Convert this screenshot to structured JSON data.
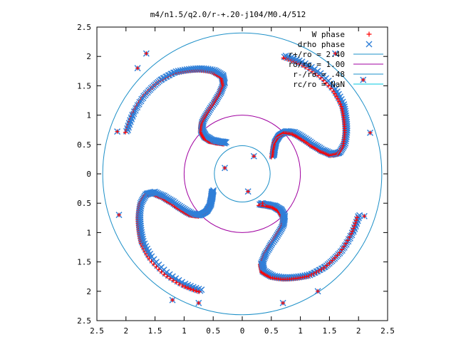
{
  "chart_data": {
    "type": "scatter",
    "title": "m4/n1.5/q2.0/r-+.20-j104/M0.4/512",
    "xlabel": "",
    "ylabel": "",
    "xlim": [
      -2.5,
      2.5
    ],
    "ylim": [
      -2.5,
      2.5
    ],
    "x_ticks": [
      -2.5,
      -2,
      -1.5,
      -1,
      -0.5,
      0,
      0.5,
      1,
      1.5,
      2,
      2.5
    ],
    "y_ticks": [
      -2.5,
      -2,
      -1.5,
      -1,
      -0.5,
      0,
      0.5,
      1,
      1.5,
      2,
      2.5
    ],
    "x_tick_labels": [
      "2.5",
      "2",
      "1.5",
      "1",
      "0.5",
      "0",
      "0.5",
      "1",
      "1.5",
      "2",
      "2.5"
    ],
    "y_tick_labels": [
      "2.5",
      "2",
      "1.5",
      "1",
      "0.5",
      "0",
      "0.5",
      "1",
      "1.5",
      "2",
      "2.5"
    ],
    "grid": false,
    "legend_position": "top-right",
    "legend": [
      {
        "label": "W phase",
        "kind": "point-plus",
        "color": "#ff0000"
      },
      {
        "label": "drho phase",
        "kind": "point-cross",
        "color": "#2f7fd8"
      },
      {
        "label": "r+/ro = 2.40",
        "kind": "line",
        "color": "#1e90c8"
      },
      {
        "label": "ro/ro = 1.00",
        "kind": "line",
        "color": "#a000a0"
      },
      {
        "label": "r-/ro = .48",
        "kind": "line",
        "color": "#1e90c8"
      },
      {
        "label": "rc/ro = NaN",
        "kind": "line",
        "color": "#00c8e0"
      }
    ],
    "circles": [
      {
        "name": "r+/ro = 2.40",
        "radius": 2.4,
        "color": "#1e90c8"
      },
      {
        "name": "ro/ro = 1.00",
        "radius": 1.0,
        "color": "#a000a0"
      },
      {
        "name": "r-/ro = .48",
        "radius": 0.48,
        "color": "#1e90c8"
      }
    ],
    "arms": {
      "count": 4,
      "base_angles_deg": [
        120,
        30,
        -60,
        -150
      ],
      "path_polar": [
        [
          0.6,
          0
        ],
        [
          0.68,
          8
        ],
        [
          0.78,
          14
        ],
        [
          0.9,
          16
        ],
        [
          1.02,
          14
        ],
        [
          1.12,
          8
        ],
        [
          1.2,
          0
        ],
        [
          1.3,
          -8
        ],
        [
          1.42,
          -14
        ],
        [
          1.56,
          -18
        ],
        [
          1.7,
          -18
        ],
        [
          1.82,
          -14
        ],
        [
          1.92,
          -8
        ],
        [
          2.0,
          -2
        ],
        [
          2.08,
          4
        ],
        [
          2.13,
          12
        ],
        [
          2.15,
          22
        ],
        [
          2.14,
          32
        ],
        [
          2.12,
          40
        ]
      ],
      "w_phase_color": "#ff0000",
      "drho_phase_color": "#2f7fd8",
      "w_marker": "plus",
      "drho_marker": "cross"
    },
    "scattered_points": [
      [
        -2.15,
        0.72
      ],
      [
        -2.12,
        -0.7
      ],
      [
        -1.8,
        1.8
      ],
      [
        -1.65,
        2.05
      ],
      [
        -1.2,
        -2.15
      ],
      [
        -0.75,
        -2.2
      ],
      [
        0.7,
        -2.2
      ],
      [
        1.3,
        -2.0
      ],
      [
        2.1,
        -0.72
      ],
      [
        2.2,
        0.7
      ],
      [
        2.08,
        1.6
      ],
      [
        1.6,
        2.05
      ],
      [
        0.2,
        0.3
      ],
      [
        -0.3,
        0.1
      ],
      [
        0.1,
        -0.3
      ],
      [
        0.35,
        -0.5
      ]
    ]
  }
}
